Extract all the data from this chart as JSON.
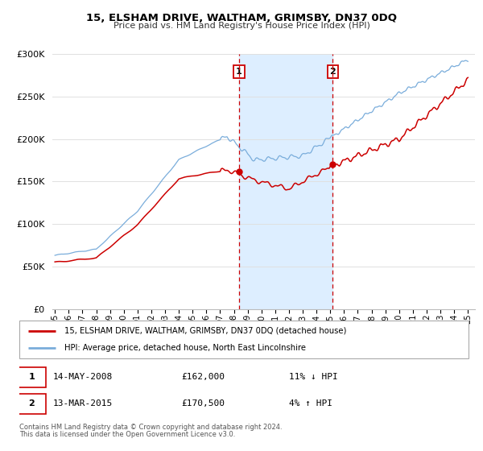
{
  "title": "15, ELSHAM DRIVE, WALTHAM, GRIMSBY, DN37 0DQ",
  "subtitle": "Price paid vs. HM Land Registry's House Price Index (HPI)",
  "legend_line1": "15, ELSHAM DRIVE, WALTHAM, GRIMSBY, DN37 0DQ (detached house)",
  "legend_line2": "HPI: Average price, detached house, North East Lincolnshire",
  "footnote1": "Contains HM Land Registry data © Crown copyright and database right 2024.",
  "footnote2": "This data is licensed under the Open Government Licence v3.0.",
  "sale1_date": "14-MAY-2008",
  "sale1_price": "£162,000",
  "sale1_hpi": "11% ↓ HPI",
  "sale2_date": "13-MAR-2015",
  "sale2_price": "£170,500",
  "sale2_hpi": "4% ↑ HPI",
  "sale1_year": 2008.37,
  "sale2_year": 2015.19,
  "sale1_value": 162000,
  "sale2_value": 170500,
  "red_color": "#cc0000",
  "blue_color": "#7aaddb",
  "shade_color": "#ddeeff",
  "ylim_min": 0,
  "ylim_max": 300000,
  "xlim_min": 1994.8,
  "xlim_max": 2025.5,
  "yticks": [
    0,
    50000,
    100000,
    150000,
    200000,
    250000,
    300000
  ]
}
